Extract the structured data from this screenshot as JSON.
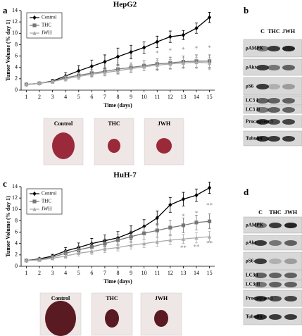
{
  "chart_data": [
    {
      "type": "line",
      "title": "HepG2",
      "x_label": "Time (days)",
      "y_label": "Tumor Volume (% day 1)",
      "x": [
        1,
        2,
        3,
        4,
        5,
        6,
        7,
        8,
        9,
        10,
        11,
        12,
        13,
        14,
        15
      ],
      "xlim": [
        0.6,
        15.4
      ],
      "xticks": [
        1,
        2,
        3,
        4,
        5,
        6,
        7,
        8,
        9,
        10,
        11,
        12,
        13,
        14,
        15
      ],
      "ylim": [
        0,
        14
      ],
      "yticks": [
        0,
        2,
        4,
        6,
        8,
        10,
        12,
        14
      ],
      "legend": "upper left",
      "series": [
        {
          "name": "Control",
          "color": "#000000",
          "marker": "diamond",
          "values": [
            1,
            1.2,
            1.6,
            2.5,
            3.4,
            4.2,
            5,
            5.9,
            6.7,
            7.5,
            8.5,
            9.4,
            9.7,
            10.9,
            12.8
          ],
          "errors": [
            0.1,
            0.2,
            0.3,
            0.6,
            0.9,
            1.1,
            1.2,
            1.5,
            1.2,
            1.0,
            1.0,
            1.0,
            0.8,
            0.9,
            0.9
          ]
        },
        {
          "name": "THC",
          "color": "#777777",
          "marker": "square",
          "values": [
            1,
            1.2,
            1.5,
            2.2,
            2.6,
            3,
            3.3,
            3.7,
            4,
            4.3,
            4.6,
            4.8,
            5,
            5.1,
            5.1
          ],
          "errors": [
            0.1,
            0.2,
            0.3,
            0.4,
            0.5,
            0.6,
            0.7,
            0.8,
            0.8,
            0.9,
            0.9,
            1.0,
            1.0,
            1.1,
            1.1
          ]
        },
        {
          "name": "JWH",
          "color": "#aaaaaa",
          "marker": "triangle",
          "values": [
            1,
            1.2,
            1.5,
            2,
            2.4,
            2.8,
            3.1,
            3.4,
            3.8,
            4.1,
            4.4,
            4.6,
            4.8,
            4.9,
            4.8
          ],
          "errors": [
            0.1,
            0.2,
            0.3,
            0.4,
            0.5,
            0.5,
            0.6,
            0.6,
            0.7,
            0.7,
            0.8,
            0.8,
            0.9,
            0.9,
            0.9
          ]
        }
      ],
      "annotations": [
        {
          "x": 11,
          "y": 6.4,
          "text": "*",
          "color": "#888888"
        },
        {
          "x": 11,
          "y": 3.2,
          "text": "*",
          "color": "#888888"
        },
        {
          "x": 12,
          "y": 6.8,
          "text": "*",
          "color": "#888888"
        },
        {
          "x": 12,
          "y": 3.4,
          "text": "*",
          "color": "#888888"
        },
        {
          "x": 13,
          "y": 7,
          "text": "*",
          "color": "#888888"
        },
        {
          "x": 13,
          "y": 3.6,
          "text": "*",
          "color": "#888888"
        },
        {
          "x": 14,
          "y": 7.2,
          "text": "*",
          "color": "#888888"
        },
        {
          "x": 14,
          "y": 3.6,
          "text": "*",
          "color": "#888888"
        },
        {
          "x": 15,
          "y": 7.3,
          "text": "*",
          "color": "#888888"
        },
        {
          "x": 15,
          "y": 3.4,
          "text": "*",
          "color": "#888888"
        }
      ]
    },
    {
      "type": "line",
      "title": "HuH-7",
      "x_label": "Time (days)",
      "y_label": "Tumor Volume (% day 1)",
      "x": [
        1,
        2,
        3,
        4,
        5,
        6,
        7,
        8,
        9,
        10,
        11,
        12,
        13,
        14,
        15
      ],
      "xlim": [
        0.6,
        15.4
      ],
      "xticks": [
        1,
        2,
        3,
        4,
        5,
        6,
        7,
        8,
        9,
        10,
        11,
        12,
        13,
        14,
        15
      ],
      "ylim": [
        0,
        14
      ],
      "yticks": [
        0,
        2,
        4,
        6,
        8,
        10,
        12,
        14
      ],
      "legend": "upper left",
      "series": [
        {
          "name": "Control",
          "color": "#000000",
          "marker": "diamond",
          "values": [
            1,
            1.3,
            1.8,
            2.7,
            3.3,
            4,
            4.5,
            5,
            5.9,
            7,
            8.5,
            10.8,
            11.8,
            12.5,
            13.8
          ],
          "errors": [
            0.1,
            0.2,
            0.3,
            0.6,
            0.8,
            0.9,
            1.0,
            1.1,
            1.2,
            1.2,
            1.2,
            1.3,
            1.2,
            1.1,
            1.0
          ]
        },
        {
          "name": "THC",
          "color": "#777777",
          "marker": "square",
          "values": [
            1,
            1.2,
            1.6,
            2.3,
            2.9,
            3.4,
            4,
            4.6,
            5.2,
            5.8,
            6.3,
            6.8,
            7.2,
            7.7,
            7.9
          ],
          "errors": [
            0.1,
            0.2,
            0.3,
            0.5,
            0.6,
            0.7,
            0.8,
            0.9,
            1.0,
            1.1,
            1.2,
            1.3,
            1.3,
            1.3,
            1.3
          ]
        },
        {
          "name": "JWH",
          "color": "#aaaaaa",
          "marker": "triangle",
          "values": [
            1,
            1.1,
            1.4,
            1.8,
            2.3,
            2.6,
            3,
            3.3,
            3.7,
            4,
            4.3,
            4.6,
            4.8,
            5,
            5.2
          ],
          "errors": [
            0.1,
            0.2,
            0.3,
            0.4,
            0.5,
            0.5,
            0.6,
            0.6,
            0.7,
            0.7,
            0.8,
            0.8,
            0.8,
            0.9,
            0.9
          ]
        }
      ],
      "annotations": [
        {
          "x": 13,
          "y": 8.7,
          "text": "*",
          "color": "#888888"
        },
        {
          "x": 14,
          "y": 9.2,
          "text": "*",
          "color": "#888888"
        },
        {
          "x": 15,
          "y": 10.6,
          "text": "**",
          "color": "#888888"
        },
        {
          "x": 13,
          "y": 3.1,
          "text": "**",
          "color": "#888888"
        },
        {
          "x": 14,
          "y": 3.3,
          "text": "**",
          "color": "#888888"
        },
        {
          "x": 15,
          "y": 3.9,
          "text": "**",
          "color": "#888888"
        }
      ]
    }
  ],
  "panel_labels": [
    "a",
    "b",
    "c",
    "d"
  ],
  "photos": [
    {
      "labels": [
        "Control",
        "THC",
        "JWH"
      ]
    },
    {
      "labels": [
        "Control",
        "THC",
        "JWH"
      ]
    }
  ],
  "blots": [
    {
      "columns": [
        "C",
        "THC",
        "JWH"
      ],
      "rows": [
        "ρAMPK",
        "ρAkt",
        "ρS6",
        "LC3 I",
        "LC3 II",
        "Procaspase 3",
        "Tubulin"
      ]
    },
    {
      "columns": [
        "C",
        "THC",
        "JWH"
      ],
      "rows": [
        "ρAMPK",
        "ρAkt",
        "ρS6",
        "LC3 I",
        "LC3 II",
        "Procaspase 3",
        "Tubulin"
      ]
    }
  ]
}
